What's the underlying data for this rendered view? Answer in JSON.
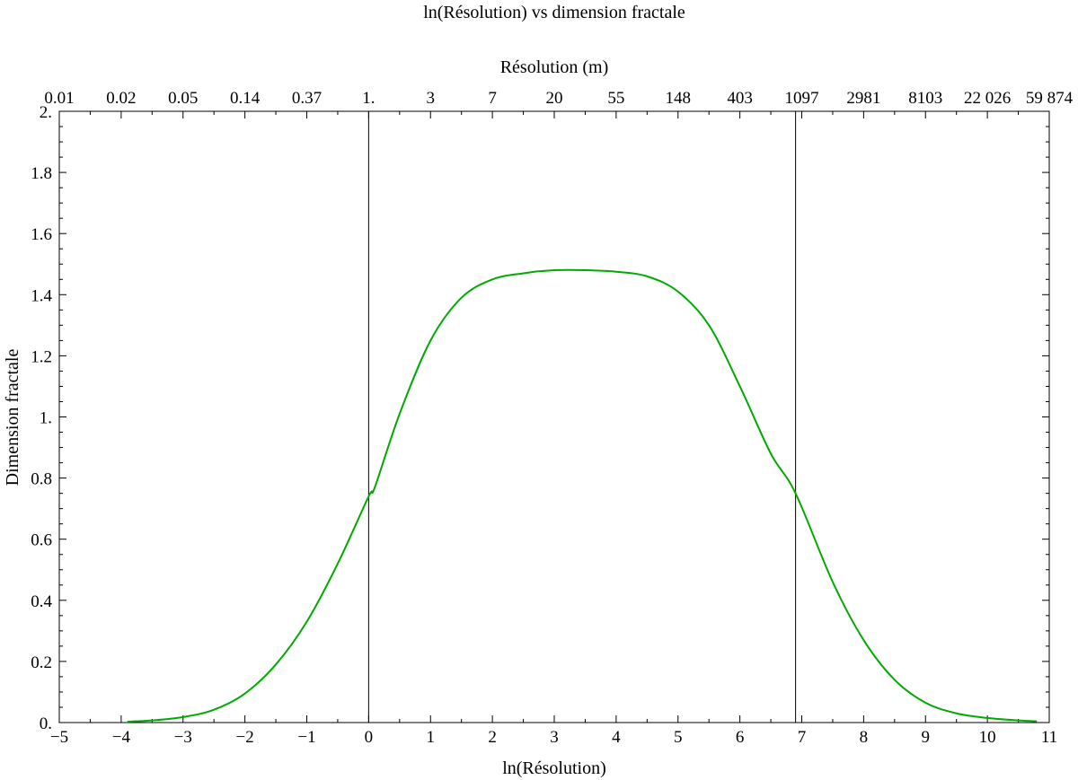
{
  "chart_data": {
    "type": "line",
    "title": "ln(Résolution) vs dimension fractale",
    "xlabel": "ln(Résolution)",
    "ylabel": "Dimension fractale",
    "x2label": "Résolution (m)",
    "xlim": [
      -5,
      11
    ],
    "ylim": [
      0,
      2
    ],
    "grid": false,
    "x_ticks": [
      "−5",
      "−4",
      "−3",
      "−2",
      "−1",
      "0",
      "1",
      "2",
      "3",
      "4",
      "5",
      "6",
      "7",
      "8",
      "9",
      "10",
      "11"
    ],
    "x_tick_values": [
      -5,
      -4,
      -3,
      -2,
      -1,
      0,
      1,
      2,
      3,
      4,
      5,
      6,
      7,
      8,
      9,
      10,
      11
    ],
    "y_ticks": [
      "0.",
      "0.2",
      "0.4",
      "0.6",
      "0.8",
      "1.",
      "1.2",
      "1.4",
      "1.6",
      "1.8",
      "2."
    ],
    "y_tick_values": [
      0,
      0.2,
      0.4,
      0.6,
      0.8,
      1.0,
      1.2,
      1.4,
      1.6,
      1.8,
      2.0
    ],
    "x2_ticks": [
      "0.01",
      "0.02",
      "0.05",
      "0.14",
      "0.37",
      "1.",
      "3",
      "7",
      "20",
      "55",
      "148",
      "403",
      "1097",
      "2981",
      "8103",
      "22 026",
      "59 874"
    ],
    "x2_tick_values": [
      -5,
      -4,
      -3,
      -2,
      -1,
      0,
      1,
      2,
      3,
      4,
      5,
      6,
      7,
      8,
      9,
      10,
      11
    ],
    "vertical_lines": [
      0,
      6.9
    ],
    "series": [
      {
        "color": "#00aa00",
        "x": [
          -3.9,
          -3.5,
          -3.0,
          -2.5,
          -2.0,
          -1.5,
          -1.0,
          -0.5,
          0.0,
          0.1,
          0.5,
          1.0,
          1.5,
          2.0,
          2.5,
          3.0,
          3.5,
          4.0,
          4.5,
          5.0,
          5.5,
          6.0,
          6.5,
          6.9,
          7.5,
          8.0,
          8.5,
          9.0,
          9.5,
          10.0,
          10.5,
          10.8
        ],
        "y": [
          0.003,
          0.007,
          0.018,
          0.042,
          0.095,
          0.19,
          0.33,
          0.52,
          0.74,
          0.77,
          1.01,
          1.25,
          1.39,
          1.45,
          1.47,
          1.48,
          1.48,
          1.475,
          1.46,
          1.41,
          1.3,
          1.1,
          0.88,
          0.75,
          0.46,
          0.27,
          0.14,
          0.065,
          0.03,
          0.015,
          0.007,
          0.004
        ]
      }
    ]
  }
}
